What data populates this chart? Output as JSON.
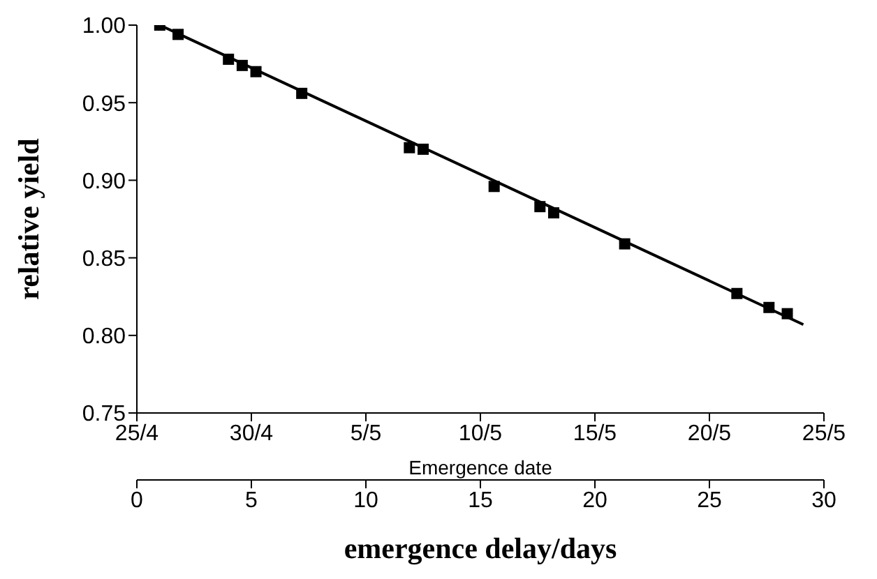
{
  "chart_data": {
    "type": "scatter",
    "xlabel": "emergence delay/days",
    "ylabel": "relative yield",
    "x2label": "Emergence date",
    "xlim": [
      0,
      30
    ],
    "xticks": [
      0,
      5,
      10,
      15,
      20,
      25,
      30
    ],
    "x2lim": [
      "--04-25",
      "--05-25"
    ],
    "x2ticks": [
      {
        "value": "--04-25",
        "label": "25/4"
      },
      {
        "value": "--04-30",
        "label": "30/4"
      },
      {
        "value": "--05-05",
        "label": "5/5"
      },
      {
        "value": "--05-10",
        "label": "10/5"
      },
      {
        "value": "--05-15",
        "label": "15/5"
      },
      {
        "value": "--05-20",
        "label": "20/5"
      },
      {
        "value": "--05-25",
        "label": "25/5"
      }
    ],
    "ylim": [
      0.75,
      1.0
    ],
    "yticks": [
      {
        "value": 0.75,
        "label": "0.75"
      },
      {
        "value": 0.8,
        "label": "0.80"
      },
      {
        "value": 0.85,
        "label": "0.85"
      },
      {
        "value": 0.9,
        "label": "0.90"
      },
      {
        "value": 0.95,
        "label": "0.95"
      },
      {
        "value": 1.0,
        "label": "1.00"
      }
    ],
    "marker": "square",
    "series": [
      {
        "color": "#000000",
        "x": [
          1.0,
          1.8,
          4.0,
          4.6,
          5.2,
          7.2,
          11.9,
          12.5,
          15.6,
          17.6,
          18.2,
          21.3,
          26.2,
          27.6,
          28.4
        ],
        "values": [
          1.0,
          0.994,
          0.978,
          0.974,
          0.97,
          0.956,
          0.921,
          0.92,
          0.896,
          0.883,
          0.879,
          0.859,
          0.827,
          0.818,
          0.814
        ]
      },
      {
        "type": "line",
        "color": "#000000",
        "marker": "none",
        "line_style": "solid",
        "x": [
          1.0,
          29.1
        ],
        "values": [
          1.0,
          0.807
        ]
      }
    ]
  }
}
